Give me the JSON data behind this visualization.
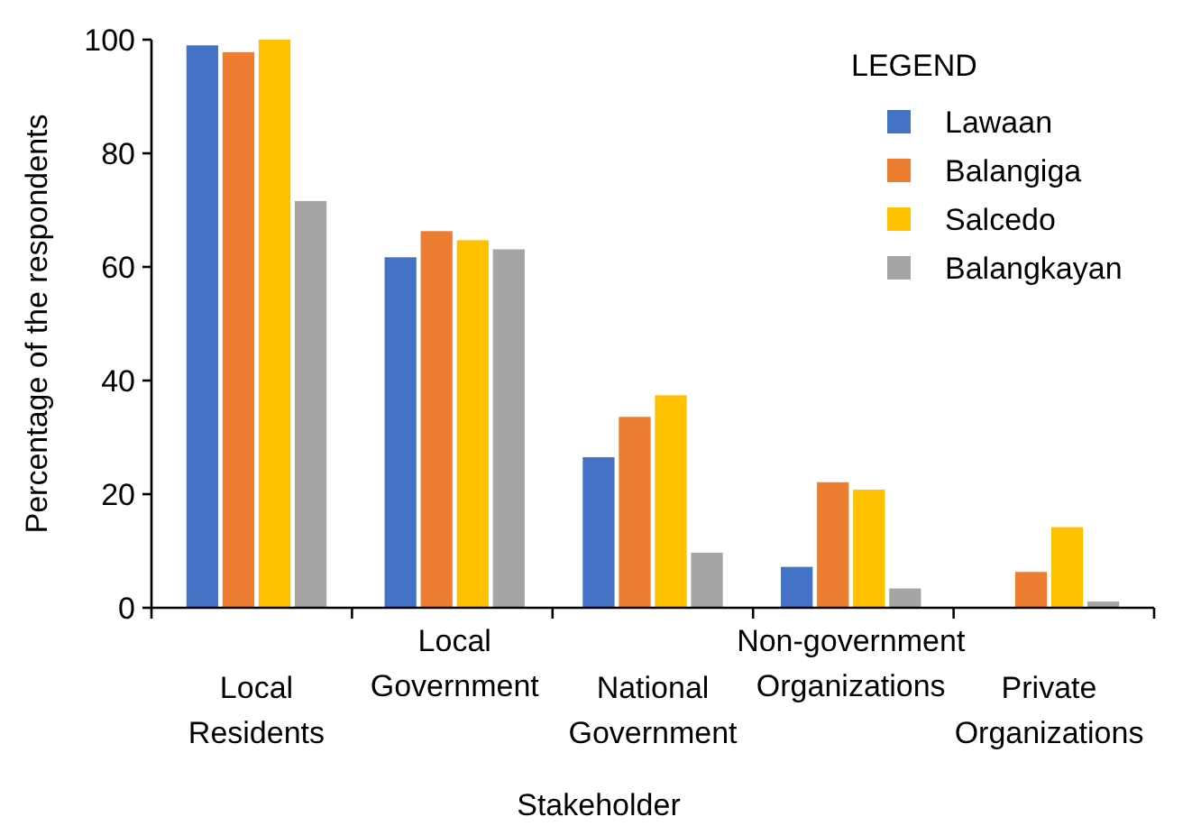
{
  "chart_data": {
    "type": "bar",
    "xlabel": "Stakeholder",
    "ylabel": "Percentage of the respondents",
    "legend_title": "LEGEND",
    "legend": "top right",
    "grid": false,
    "categories": [
      "Local Residents",
      "Local Government",
      "National Government",
      "Non-government Organizations",
      "Private Organizations"
    ],
    "ylim": [
      0,
      100
    ],
    "yticks": [
      0,
      20,
      40,
      60,
      80,
      100
    ],
    "series": [
      {
        "name": "Lawaan",
        "color": "#4472c4",
        "values": [
          99,
          61.7,
          26.5,
          7.2,
          0
        ]
      },
      {
        "name": "Balangiga",
        "color": "#ed7d31",
        "values": [
          97.8,
          66.3,
          33.6,
          22.1,
          6.3
        ]
      },
      {
        "name": "Salcedo",
        "color": "#ffc000",
        "values": [
          100,
          64.7,
          37.4,
          20.8,
          14.2
        ]
      },
      {
        "name": "Balangkayan",
        "color": "#a5a5a5",
        "values": [
          71.6,
          63.1,
          9.7,
          3.4,
          1.1
        ]
      }
    ]
  }
}
